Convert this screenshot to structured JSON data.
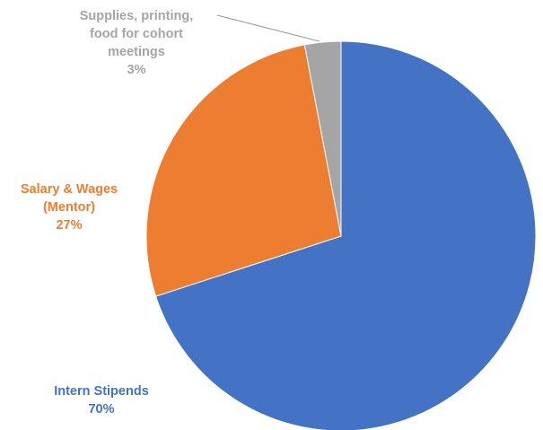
{
  "chart_data": {
    "type": "pie",
    "title": "",
    "slices": [
      {
        "name": "Intern Stipends",
        "value": 70,
        "pct_text": "70%",
        "color": "#4472C4",
        "label_lines": [
          "Intern Stipends"
        ]
      },
      {
        "name": "Salary & Wages (Mentor)",
        "value": 27,
        "pct_text": "27%",
        "color": "#ED7D31",
        "label_lines": [
          "Salary & Wages",
          "(Mentor)"
        ]
      },
      {
        "name": "Supplies, printing, food for cohort meetings",
        "value": 3,
        "pct_text": "3%",
        "color": "#A5A5A5",
        "label_lines": [
          "Supplies, printing,",
          "food for cohort",
          "meetings"
        ]
      }
    ],
    "start_angle": "12 o'clock",
    "direction": "clockwise",
    "legend": "none",
    "data_labels": "outside"
  }
}
